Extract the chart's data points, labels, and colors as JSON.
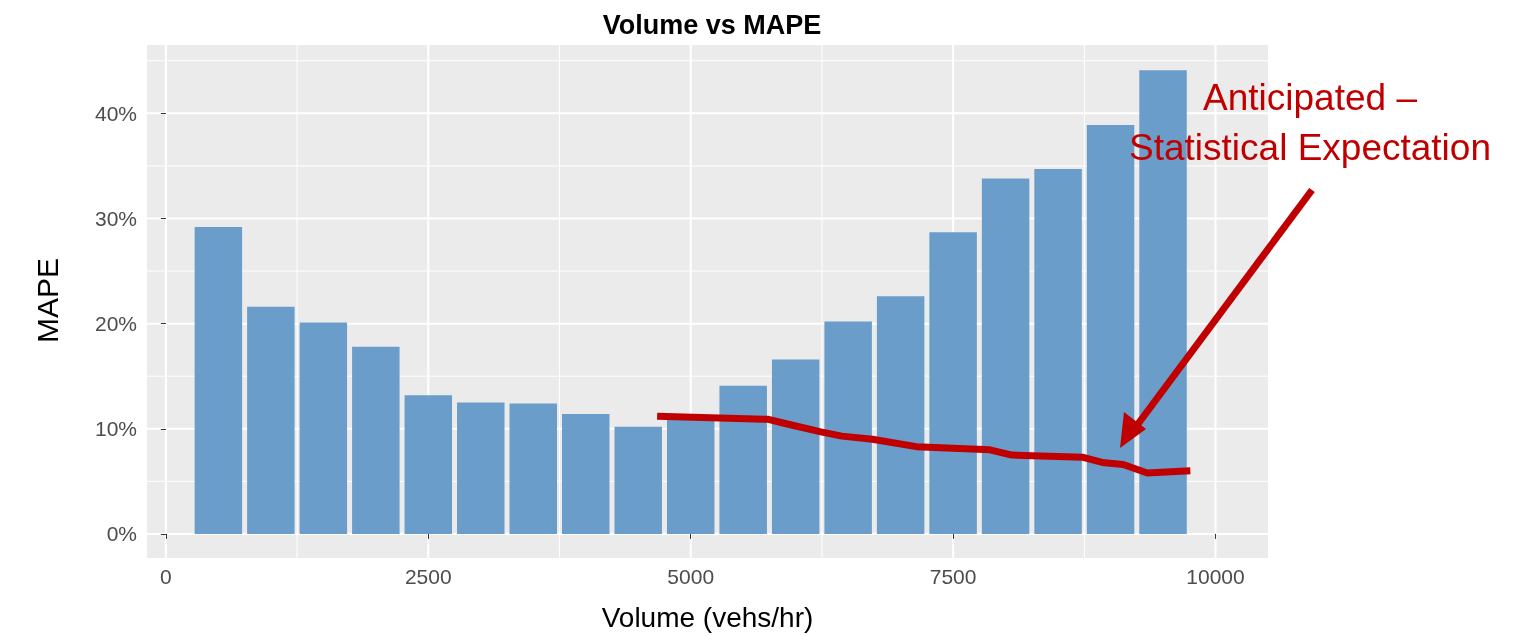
{
  "chart_data": {
    "type": "histogram",
    "title": "Volume vs MAPE",
    "xlabel": "Volume (vehs/hr)",
    "ylabel": "MAPE",
    "series": [
      {
        "color": "#6a9dc9",
        "bins": [
          250,
          750,
          1250,
          1750,
          2250,
          2750,
          3250,
          3750,
          4250,
          4750,
          5250,
          5750,
          6250,
          6750,
          7250,
          7750,
          8250,
          8750,
          9250,
          9750
        ],
        "values": [
          29.2,
          21.6,
          20.1,
          17.8,
          13.2,
          12.5,
          12.4,
          11.4,
          10.2,
          11.0,
          14.1,
          16.6,
          20.2,
          22.6,
          28.7,
          33.8,
          34.7,
          38.9,
          44.1
        ]
      },
      {
        "type": "line",
        "color": "#c00000",
        "x": [
          4680,
          5740,
          5900,
          6240,
          6440,
          6730,
          7150,
          7850,
          8060,
          8730,
          8920,
          9120,
          9350,
          9760
        ],
        "values": [
          11.2,
          10.9,
          10.5,
          9.7,
          9.3,
          9.0,
          8.3,
          8.0,
          7.5,
          7.3,
          6.8,
          6.6,
          5.8,
          6.0
        ]
      }
    ],
    "xlim": [
      -180,
      10500
    ],
    "xticks": [
      0,
      2500,
      5000,
      7500,
      10000
    ],
    "ylim": [
      -2.1,
      46.5
    ],
    "yticks": [
      {
        "value": 0,
        "label": "0%"
      },
      {
        "value": 10,
        "label": "10%"
      },
      {
        "value": 20,
        "label": "20%"
      },
      {
        "value": 30,
        "label": "30%"
      },
      {
        "value": 40,
        "label": "40%"
      }
    ],
    "grid": true,
    "marker": "none",
    "line_style": "solid",
    "annotations": [
      "Anticipated –\nStatistical Expectation"
    ]
  }
}
